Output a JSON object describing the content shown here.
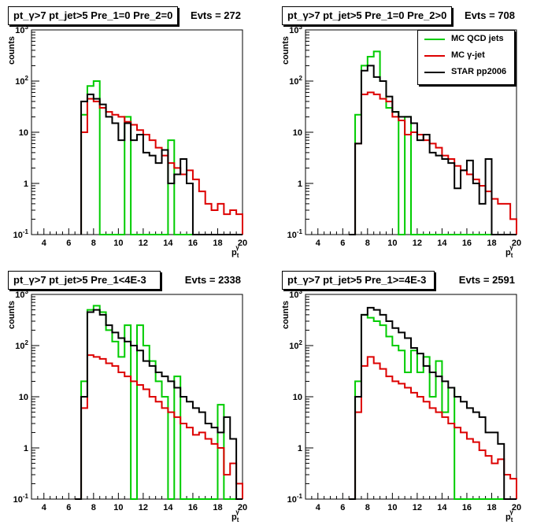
{
  "chart_data": [
    {
      "type": "histogram",
      "title": "pt_γ>7 pt_jet>5 Pre_1=0 Pre_2=0",
      "evts": "Evts = 272",
      "xlabel": "p_t^γ",
      "ylabel": "counts",
      "xlim": [
        3,
        20
      ],
      "ylim": [
        0.1,
        1000
      ],
      "yscale": "log",
      "xticks": [
        4,
        6,
        8,
        10,
        12,
        14,
        16,
        18,
        20
      ],
      "yticks": [
        {
          "v": 0.1,
          "label": "10^-1"
        },
        {
          "v": 1,
          "label": "1"
        },
        {
          "v": 10,
          "label": "10"
        },
        {
          "v": 100,
          "label": "10^2"
        },
        {
          "v": 1000,
          "label": "10^3"
        }
      ],
      "bin_edges": [
        7,
        7.5,
        8,
        8.5,
        9,
        9.5,
        10,
        10.5,
        11,
        11.5,
        12,
        12.5,
        13,
        13.5,
        14,
        14.5,
        15,
        15.5,
        16,
        16.5,
        17,
        17.5,
        18,
        18.5,
        19,
        19.5,
        20
      ],
      "series": [
        {
          "color": "#00cc00",
          "values": [
            22,
            80,
            100,
            0,
            0,
            0,
            0,
            20,
            0,
            0,
            0,
            0,
            0,
            0,
            7,
            0,
            0,
            0,
            0,
            0,
            0,
            0,
            0,
            0,
            0,
            0
          ]
        },
        {
          "color": "#dd0000",
          "values": [
            10,
            45,
            40,
            30,
            25,
            22,
            20,
            16,
            14,
            11,
            9,
            7,
            5,
            3.5,
            2.5,
            2,
            1.5,
            1.8,
            1.2,
            0.7,
            0.4,
            0.3,
            0.4,
            0.25,
            0.3,
            0.25
          ]
        },
        {
          "color": "#000000",
          "values": [
            40,
            55,
            45,
            35,
            20,
            15,
            7,
            15,
            7,
            9,
            4,
            3.5,
            2.5,
            4.5,
            1,
            1.5,
            3,
            1,
            0,
            0,
            0,
            0,
            0,
            0,
            0,
            0
          ]
        }
      ]
    },
    {
      "type": "histogram",
      "title": "pt_γ>7 pt_jet>5 Pre_1=0 Pre_2>0",
      "evts": "Evts = 708",
      "xlabel": "p_t^γ",
      "ylabel": "counts",
      "xlim": [
        3,
        20
      ],
      "ylim": [
        0.1,
        1000
      ],
      "yscale": "log",
      "xticks": [
        4,
        6,
        8,
        10,
        12,
        14,
        16,
        18,
        20
      ],
      "yticks": [
        {
          "v": 0.1,
          "label": "10^-1"
        },
        {
          "v": 1,
          "label": "1"
        },
        {
          "v": 10,
          "label": "10"
        },
        {
          "v": 100,
          "label": "10^2"
        },
        {
          "v": 1000,
          "label": "10^3"
        }
      ],
      "legend": [
        {
          "label": "MC QCD jets",
          "color": "#00cc00"
        },
        {
          "label": "MC γ-jet",
          "color": "#dd0000"
        },
        {
          "label": "STAR pp2006",
          "color": "#000000"
        }
      ],
      "bin_edges": [
        6.5,
        7,
        7.5,
        8,
        8.5,
        9,
        9.5,
        10,
        10.5,
        11,
        11.5,
        12,
        12.5,
        13,
        13.5,
        14,
        14.5,
        15,
        15.5,
        16,
        16.5,
        17,
        17.5,
        18,
        18.5,
        19,
        19.5,
        20
      ],
      "series": [
        {
          "color": "#00cc00",
          "values": [
            0,
            22,
            200,
            300,
            380,
            100,
            30,
            25,
            0,
            20,
            0,
            0,
            0,
            0,
            0,
            0,
            0,
            0,
            0,
            0,
            0,
            0,
            0,
            0,
            0,
            0,
            0
          ]
        },
        {
          "color": "#dd0000",
          "values": [
            0,
            6,
            55,
            60,
            55,
            45,
            40,
            20,
            17,
            9,
            10,
            9,
            7,
            6,
            5,
            3.5,
            3,
            2.2,
            1.8,
            1.5,
            1.2,
            0.9,
            0.7,
            0.5,
            0.4,
            0.4,
            0.2
          ]
        },
        {
          "color": "#000000",
          "values": [
            0,
            6,
            160,
            200,
            120,
            100,
            50,
            25,
            20,
            20,
            15,
            7,
            9,
            4,
            3.5,
            3,
            2.5,
            0.8,
            1.8,
            2.8,
            1,
            0.4,
            3,
            0,
            0,
            0,
            0
          ]
        }
      ]
    },
    {
      "type": "histogram",
      "title": "pt_γ>7 pt_jet>5 Pre_1<4E-3",
      "evts": "Evts = 2338",
      "xlabel": "p_t^γ",
      "ylabel": "counts",
      "xlim": [
        3,
        20
      ],
      "ylim": [
        0.1,
        1000
      ],
      "yscale": "log",
      "xticks": [
        4,
        6,
        8,
        10,
        12,
        14,
        16,
        18,
        20
      ],
      "yticks": [
        {
          "v": 0.1,
          "label": "10^-1"
        },
        {
          "v": 1,
          "label": "1"
        },
        {
          "v": 10,
          "label": "10"
        },
        {
          "v": 100,
          "label": "10^2"
        },
        {
          "v": 1000,
          "label": "10^3"
        }
      ],
      "bin_edges": [
        6.5,
        7,
        7.5,
        8,
        8.5,
        9,
        9.5,
        10,
        10.5,
        11,
        11.5,
        12,
        12.5,
        13,
        13.5,
        14,
        14.5,
        15,
        15.5,
        16,
        16.5,
        17,
        17.5,
        18,
        18.5,
        19,
        19.5,
        20
      ],
      "series": [
        {
          "color": "#00cc00",
          "values": [
            0,
            20,
            500,
            600,
            450,
            200,
            120,
            60,
            250,
            0,
            250,
            100,
            50,
            20,
            10,
            0,
            25,
            0,
            0,
            0,
            0,
            0,
            0,
            7,
            0,
            0,
            0
          ]
        },
        {
          "color": "#dd0000",
          "values": [
            0,
            6,
            65,
            60,
            55,
            45,
            40,
            30,
            25,
            20,
            17,
            14,
            10,
            8,
            6,
            5,
            4,
            3,
            2.5,
            1.8,
            2,
            1.5,
            1.2,
            1,
            0.3,
            0.5,
            0.2
          ]
        },
        {
          "color": "#000000",
          "values": [
            0,
            10,
            450,
            500,
            400,
            250,
            180,
            140,
            120,
            100,
            80,
            50,
            40,
            30,
            25,
            20,
            15,
            10,
            8,
            6,
            5,
            3,
            2.5,
            2,
            4,
            1.5,
            0
          ]
        }
      ]
    },
    {
      "type": "histogram",
      "title": "pt_γ>7 pt_jet>5 Pre_1>=4E-3",
      "evts": "Evts = 2591",
      "xlabel": "p_t^γ",
      "ylabel": "counts",
      "xlim": [
        3,
        20
      ],
      "ylim": [
        0.1,
        1000
      ],
      "yscale": "log",
      "xticks": [
        4,
        6,
        8,
        10,
        12,
        14,
        16,
        18,
        20
      ],
      "yticks": [
        {
          "v": 0.1,
          "label": "10^-1"
        },
        {
          "v": 1,
          "label": "1"
        },
        {
          "v": 10,
          "label": "10"
        },
        {
          "v": 100,
          "label": "10^2"
        },
        {
          "v": 1000,
          "label": "10^3"
        }
      ],
      "bin_edges": [
        6.5,
        7,
        7.5,
        8,
        8.5,
        9,
        9.5,
        10,
        10.5,
        11,
        11.5,
        12,
        12.5,
        13,
        13.5,
        14,
        14.5,
        15,
        15.5,
        16,
        16.5,
        17,
        17.5,
        18,
        18.5,
        19,
        19.5,
        20
      ],
      "series": [
        {
          "color": "#00cc00",
          "values": [
            0,
            20,
            400,
            350,
            300,
            250,
            150,
            100,
            80,
            30,
            80,
            30,
            60,
            10,
            50,
            5,
            15,
            0,
            0,
            0,
            0,
            0,
            0,
            0,
            0,
            0,
            0
          ]
        },
        {
          "color": "#dd0000",
          "values": [
            0,
            5,
            40,
            60,
            45,
            35,
            25,
            20,
            18,
            15,
            12,
            10,
            8,
            6,
            5,
            4,
            3,
            2.5,
            2,
            1.5,
            1.3,
            0.9,
            0.7,
            0.5,
            0.6,
            0.3,
            0.25
          ]
        },
        {
          "color": "#000000",
          "values": [
            0,
            10,
            400,
            550,
            500,
            400,
            300,
            220,
            180,
            140,
            90,
            70,
            40,
            30,
            25,
            20,
            15,
            10,
            8,
            6,
            5,
            4,
            2,
            2,
            1.2,
            0,
            0
          ]
        }
      ]
    }
  ]
}
